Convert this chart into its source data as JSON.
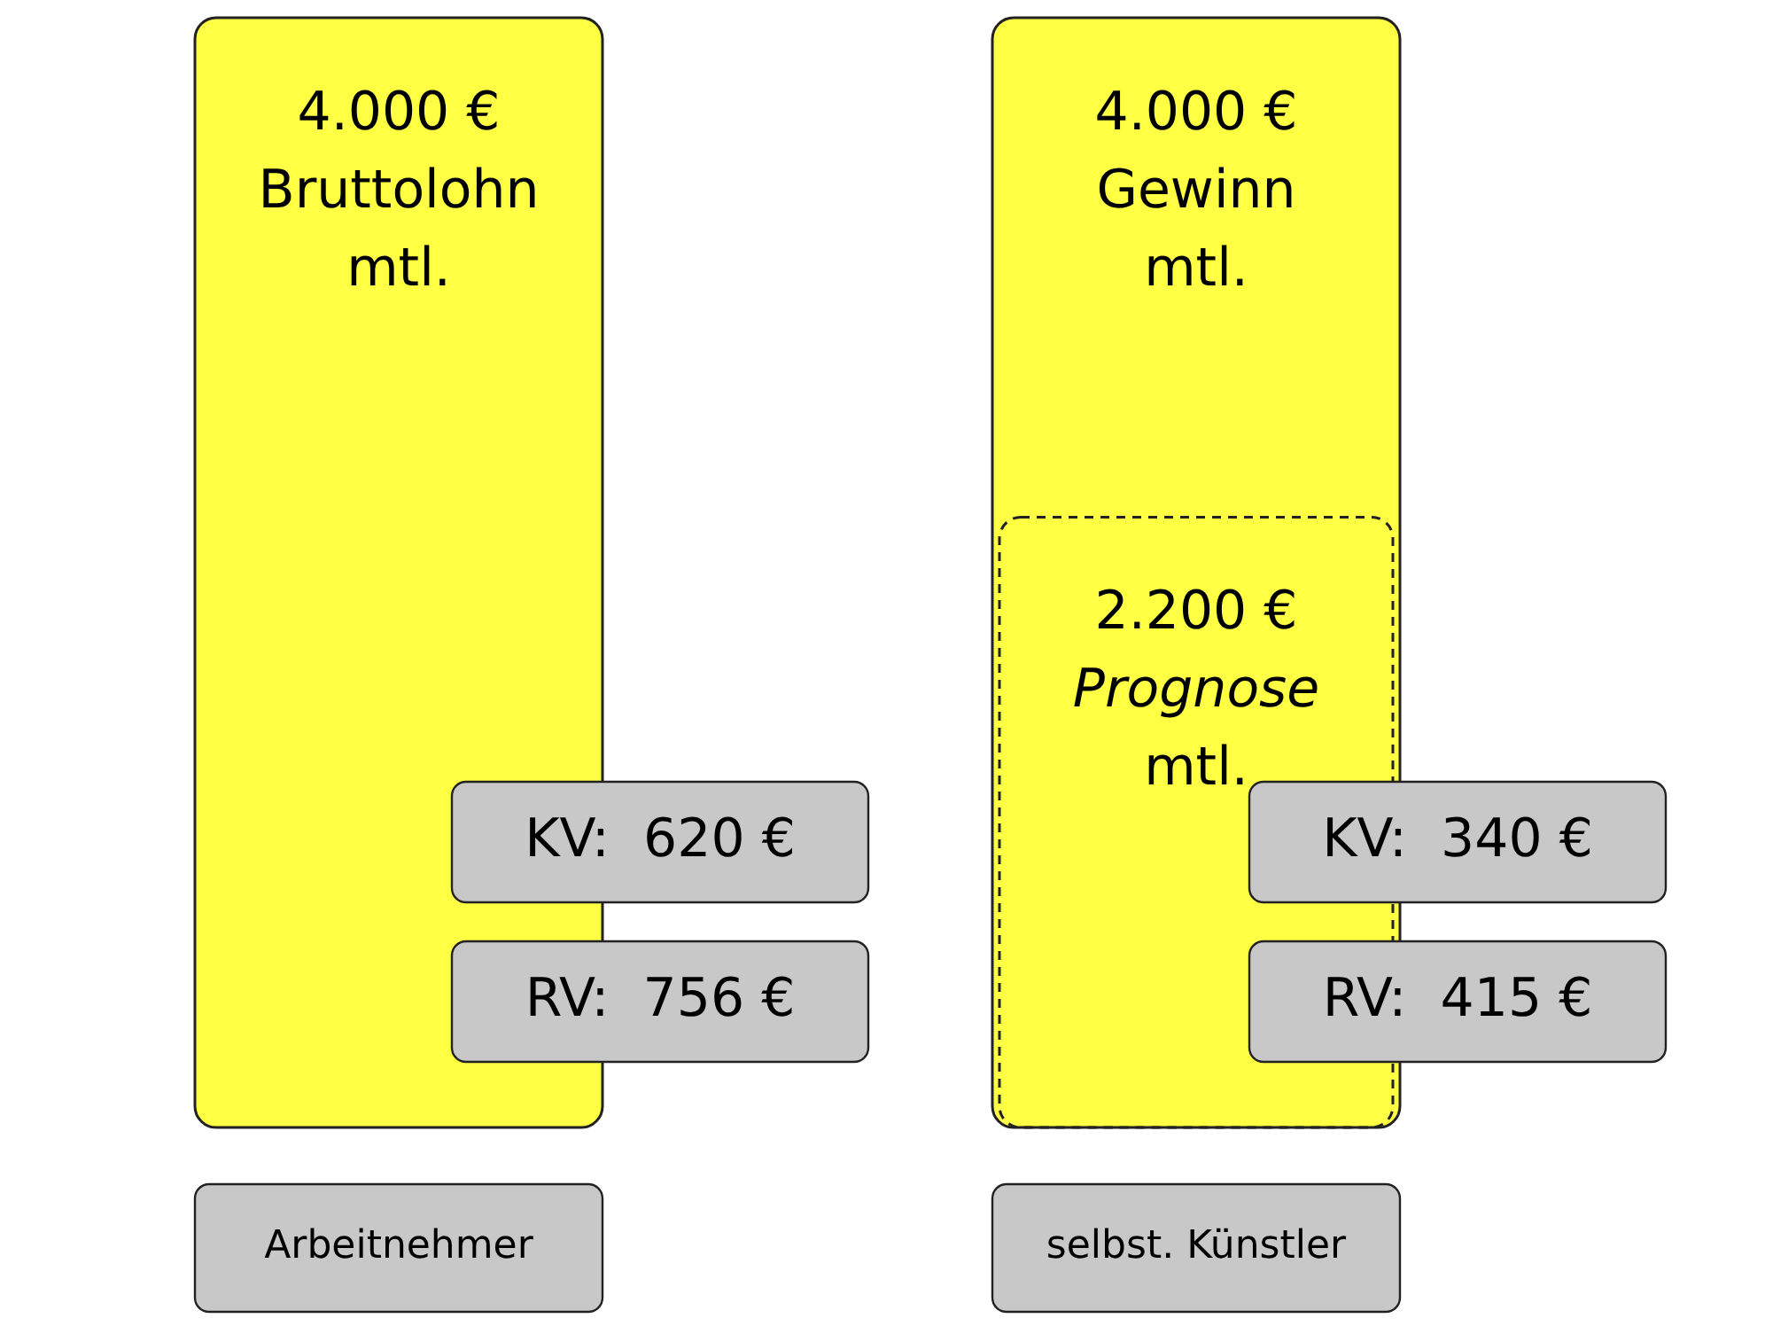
{
  "chart_data": {
    "type": "bar",
    "categories": [
      "Arbeitnehmer",
      "selbst. Künstler"
    ],
    "series": [
      {
        "color": "#ffff44",
        "values": [
          4000,
          4000
        ],
        "value_labels": [
          "4.000 €\nBruttolohn\nmtl.",
          "4.000 €\nGewinn\nmtl."
        ]
      },
      {
        "color": "#ffff22",
        "line_style": "dashed",
        "values": [
          null,
          2200
        ],
        "value_labels": [
          null,
          "2.200 €\nPrognose\nmtl."
        ]
      }
    ],
    "ylim": [
      0,
      4000
    ],
    "tick_labels": false,
    "grid": false,
    "legend": false,
    "annotations": [
      "KV:  620 €",
      "RV:  756 €",
      "KV:  340 €",
      "RV:  415 €"
    ]
  }
}
